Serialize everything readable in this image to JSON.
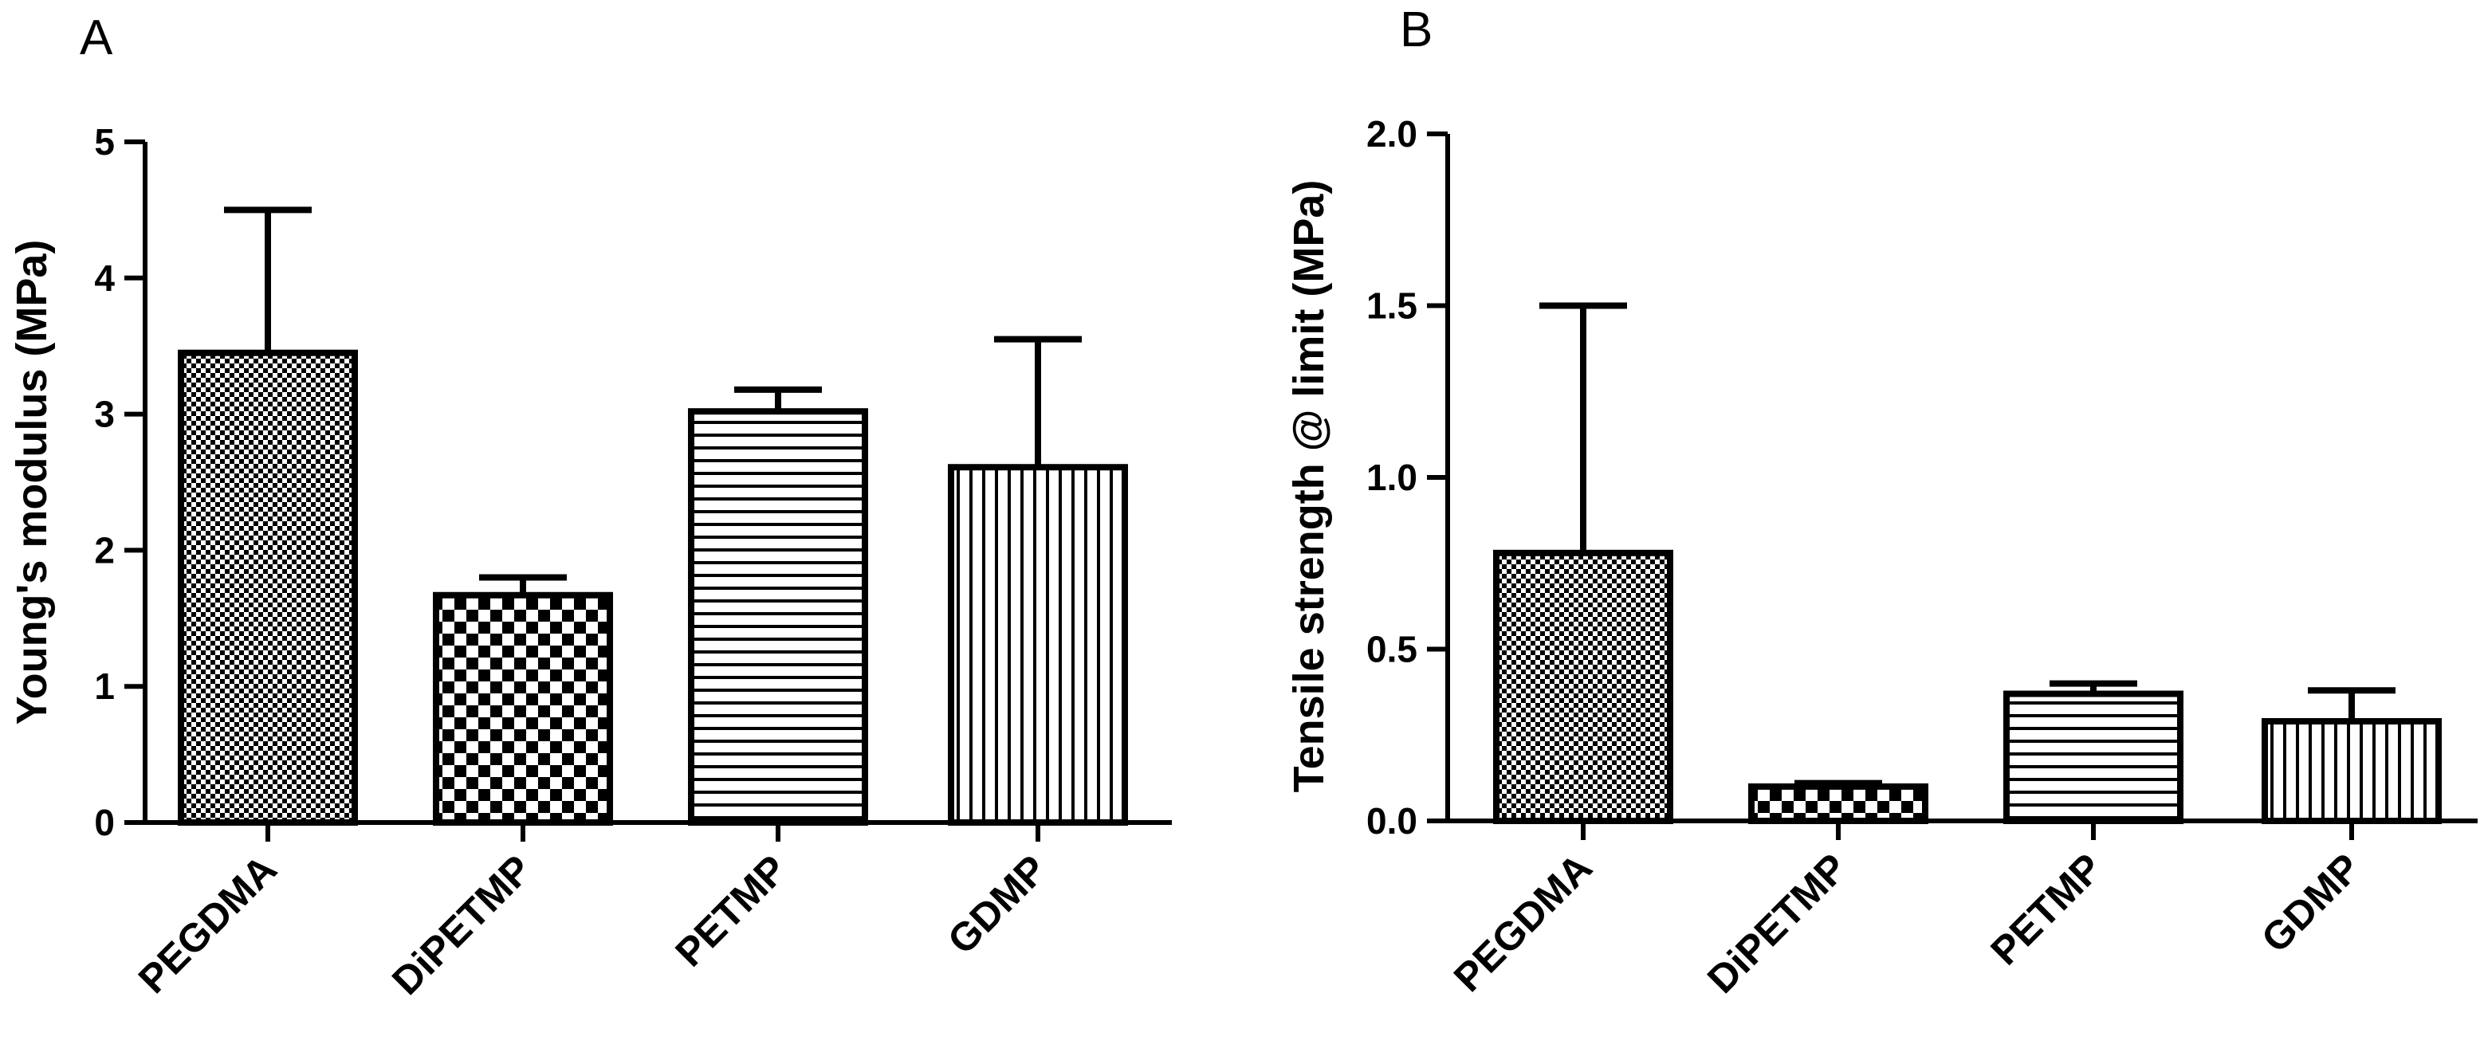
{
  "chart_data": [
    {
      "panel": "A",
      "type": "bar",
      "title": "",
      "xlabel": "",
      "ylabel": "Young's modulus (MPa)",
      "categories": [
        "PEGDMA",
        "DiPETMP",
        "PETMP",
        "GDMP"
      ],
      "values": [
        3.45,
        1.67,
        3.02,
        2.61
      ],
      "errors": [
        1.05,
        0.13,
        0.16,
        0.94
      ],
      "patterns": [
        "fine-check",
        "checker",
        "horizontal",
        "vertical"
      ],
      "ylim": [
        0,
        5
      ],
      "yticks": [
        0,
        1,
        2,
        3,
        4,
        5
      ],
      "ytick_labels": [
        "0",
        "1",
        "2",
        "3",
        "4",
        "5"
      ],
      "grid": false,
      "legend": "none"
    },
    {
      "panel": "B",
      "type": "bar",
      "title": "",
      "xlabel": "",
      "ylabel": "Tensile strength @ limit (MPa)",
      "categories": [
        "PEGDMA",
        "DiPETMP",
        "PETMP",
        "GDMP"
      ],
      "values": [
        0.78,
        0.1,
        0.37,
        0.29
      ],
      "errors": [
        0.72,
        0.01,
        0.03,
        0.09
      ],
      "patterns": [
        "fine-check",
        "checker",
        "horizontal",
        "vertical"
      ],
      "ylim": [
        0,
        2
      ],
      "yticks": [
        0,
        0.5,
        1,
        1.5,
        2
      ],
      "ytick_labels": [
        "0.0",
        "0.5",
        "1.0",
        "1.5",
        "2.0"
      ],
      "grid": false,
      "legend": "none"
    }
  ],
  "colors": {
    "ink": "#000000",
    "fill": "#ffffff"
  }
}
